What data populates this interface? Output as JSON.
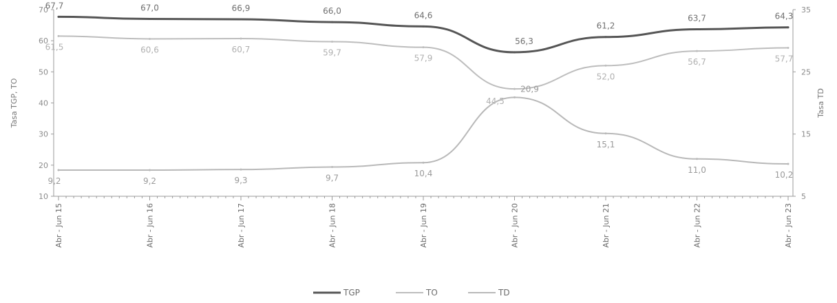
{
  "chart_data": {
    "type": "line",
    "x": [
      "Abr - Jun 15",
      "Abr - Jun 16",
      "Abr - Jun 17",
      "Abr - Jun 18",
      "Abr - Jun 19",
      "Abr - Jun 20",
      "Abr - Jun 21",
      "Abr - Jun 22",
      "Abr - Jun 23"
    ],
    "ylabel": "Tasa TGP, TO",
    "y2label": "Tasa TD",
    "ylim": [
      10,
      70
    ],
    "y2lim": [
      5,
      35
    ],
    "yticks": [
      10,
      20,
      30,
      40,
      50,
      60,
      70
    ],
    "y2ticks": [
      5,
      15,
      25,
      35
    ],
    "grid": false,
    "legend_position": "bottom",
    "series": [
      {
        "name": "TGP",
        "axis": "left",
        "color": "#555555",
        "values": [
          67.7,
          67.0,
          66.9,
          66.0,
          64.6,
          56.3,
          61.2,
          63.7,
          64.3
        ],
        "labels": [
          "67,7",
          "67,0",
          "66,9",
          "66,0",
          "64,6",
          "56,3",
          "61,2",
          "63,7",
          "64,3"
        ]
      },
      {
        "name": "TO",
        "axis": "left",
        "color": "#bdbdbd",
        "values": [
          61.5,
          60.6,
          60.7,
          59.7,
          57.9,
          44.5,
          52.0,
          56.7,
          57.7
        ],
        "labels": [
          "61,5",
          "60,6",
          "60,7",
          "59,7",
          "57,9",
          "44,5",
          "52,0",
          "56,7",
          "57,7"
        ]
      },
      {
        "name": "TD",
        "axis": "right",
        "color": "#b8b8b8",
        "values": [
          9.2,
          9.2,
          9.3,
          9.7,
          10.4,
          20.9,
          15.1,
          11.0,
          10.2
        ],
        "labels": [
          "9,2",
          "9,2",
          "9,3",
          "9,7",
          "10,4",
          "20,9",
          "15,1",
          "11,0",
          "10,2"
        ]
      }
    ]
  }
}
